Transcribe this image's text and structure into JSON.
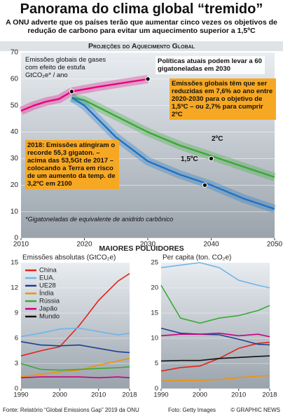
{
  "header": {
    "title": "Panorama do clima global “tremido”",
    "subtitle": "A ONU adverte que os países terão que aumentar cinco vezes os objetivos de redução de carbono para evitar um aquecimento superior a 1,5ºC",
    "subheading": "MAIORES POLUIDORES"
  },
  "footer": {
    "source": "Fonte: Relatório “Global Emissions Gap” 2019 da ONU",
    "photo": "Foto: Getty Images",
    "credit": "© GRAPHIC NEWS"
  },
  "chart_data": [
    {
      "type": "line",
      "title": "Projeções do Aquecimento Global",
      "xlim": [
        2010,
        2050
      ],
      "xticks": [
        2010,
        2020,
        2030,
        2040,
        2050
      ],
      "ylim": [
        0,
        70
      ],
      "yticks": [
        0,
        10,
        20,
        30,
        40,
        50,
        60,
        70
      ],
      "grid": true,
      "series": [
        {
          "color": "#e6007e",
          "x": [
            2010,
            2012,
            2014,
            2016,
            2018
          ],
          "values": [
            48,
            50,
            51.5,
            52.5,
            55.3
          ]
        },
        {
          "color": "#e6007e",
          "x": [
            2018,
            2022,
            2026,
            2030
          ],
          "values": [
            55.3,
            57,
            58.5,
            60
          ]
        },
        {
          "color": "#3aaa35",
          "x": [
            2018,
            2020,
            2025,
            2030,
            2035,
            2040,
            2045,
            2050
          ],
          "values": [
            53,
            52,
            46,
            40,
            35,
            31,
            27,
            23
          ]
        },
        {
          "color": "#1a73c8",
          "x": [
            2018,
            2020,
            2025,
            2030,
            2035,
            2040,
            2045,
            2050
          ],
          "values": [
            53,
            50,
            38,
            29,
            24,
            20,
            15,
            11
          ]
        }
      ],
      "points": [
        {
          "x": 2018,
          "y": 55.3
        },
        {
          "x": 2030,
          "y": 60
        },
        {
          "x": 2040,
          "y": 30
        },
        {
          "x": 2039,
          "y": 20
        }
      ],
      "annotations": [
        "Emissões globais de gases com efeito de estufa GtCO₂e* / ano",
        "Políticas atuais podem levar a 60 gigatoneladas em 2030",
        "Emissões globais têm que ser reduzidas em 7,6% ao ano entre 2020-2030 para o objetivo de 1,5ºC – ou 2,7% para cumprir 2ºC",
        "2018: Emissões atingiram o recorde 55,3 gigaton. – acima das 53,5Gt de 2017 – colocando a Terra em risco de um aumento da temp. de 3,2ºC em 2100",
        "2ºC",
        "1,5ºC",
        "*Gigatoneladas de equivalente de anidrido carbônico"
      ]
    },
    {
      "type": "line",
      "title": "Emissões absolutas (GtCO₂e)",
      "xlim": [
        1990,
        2018
      ],
      "xticks": [
        1990,
        2000,
        2010,
        2018
      ],
      "ylim": [
        0,
        15
      ],
      "yticks": [
        0,
        3,
        6,
        9,
        12,
        15
      ],
      "grid": true,
      "x": [
        1990,
        1995,
        2000,
        2005,
        2010,
        2015,
        2018
      ],
      "series": [
        {
          "name": "China",
          "color": "#e2231a",
          "values": [
            3.9,
            4.5,
            5,
            7.5,
            10.5,
            12.8,
            13.7
          ]
        },
        {
          "name": "EUA.",
          "color": "#6fb6e8",
          "values": [
            6.2,
            6.6,
            7.1,
            7.2,
            6.8,
            6.4,
            6.6
          ]
        },
        {
          "name": "UE28",
          "color": "#1f3f93",
          "values": [
            5.6,
            5.2,
            5.1,
            5.2,
            4.8,
            4.4,
            4.3
          ]
        },
        {
          "name": "Índia",
          "color": "#f39200",
          "values": [
            1.4,
            1.7,
            2,
            2.2,
            2.8,
            3.3,
            3.6
          ]
        },
        {
          "name": "Rússia",
          "color": "#3aaa35",
          "values": [
            3,
            2.3,
            2.2,
            2.3,
            2.4,
            2.5,
            2.6
          ]
        },
        {
          "name": "Japão",
          "color": "#c8007e",
          "values": [
            1.3,
            1.4,
            1.4,
            1.4,
            1.3,
            1.4,
            1.3
          ]
        }
      ]
    },
    {
      "type": "line",
      "title": "Per capita (ton. CO₂e)",
      "xlim": [
        1990,
        2018
      ],
      "xticks": [
        1990,
        2000,
        2010,
        2018
      ],
      "ylim": [
        0,
        25
      ],
      "yticks": [
        0,
        5,
        10,
        15,
        20,
        25
      ],
      "grid": true,
      "x": [
        1990,
        1995,
        2000,
        2005,
        2010,
        2015,
        2018
      ],
      "series": [
        {
          "name": "China",
          "color": "#e2231a",
          "values": [
            3.5,
            4.2,
            4.5,
            6,
            8,
            9,
            9.2
          ]
        },
        {
          "name": "EUA.",
          "color": "#6fb6e8",
          "values": [
            24,
            24.5,
            25,
            24,
            21.5,
            20.5,
            20
          ]
        },
        {
          "name": "UE28",
          "color": "#1f3f93",
          "values": [
            12,
            11,
            10.8,
            10.7,
            9.8,
            8.8,
            8.7
          ]
        },
        {
          "name": "Índia",
          "color": "#f39200",
          "values": [
            1.5,
            1.6,
            1.7,
            1.8,
            2.2,
            2.5,
            2.6
          ]
        },
        {
          "name": "Rússia",
          "color": "#3aaa35",
          "values": [
            20.5,
            14,
            13,
            14,
            14.5,
            15.5,
            16.5
          ]
        },
        {
          "name": "Japão",
          "color": "#c8007e",
          "values": [
            10.5,
            10.8,
            10.8,
            11,
            10.5,
            10.8,
            10.3
          ]
        },
        {
          "name": "Mundo",
          "color": "#111111",
          "values": [
            5.5,
            5.6,
            5.6,
            6,
            6.2,
            6.4,
            6.5
          ]
        }
      ]
    }
  ]
}
